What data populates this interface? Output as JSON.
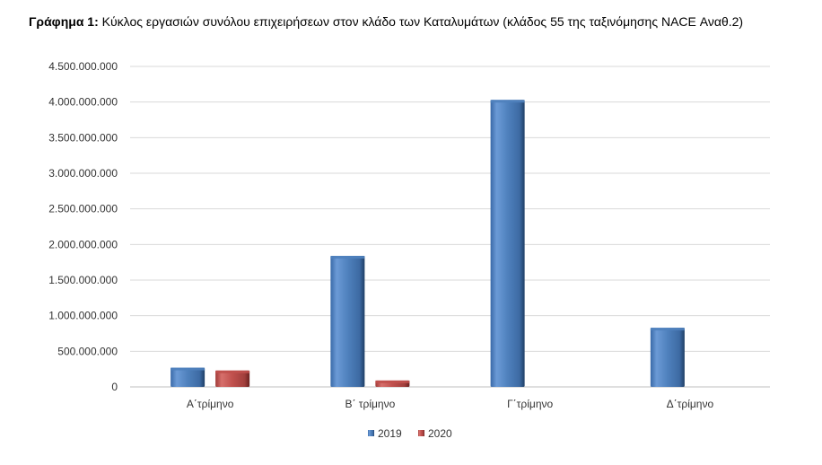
{
  "title_prefix": "Γράφημα 1:",
  "title_text": "Κύκλος εργασιών συνόλου επιχειρήσεων στον κλάδο των Καταλυμάτων (κλάδος 55 της ταξινόμησης NACE Αναθ.2)",
  "chart_data": {
    "type": "bar",
    "categories": [
      "Α΄τρίμηνο",
      "Β΄ τρίμηνο",
      "Γ΄τρίμηνο",
      "Δ΄τρίμηνο"
    ],
    "series": [
      {
        "name": "2019",
        "values": [
          270000000,
          1840000000,
          4030000000,
          830000000
        ],
        "color": "#4f81bd"
      },
      {
        "name": "2020",
        "values": [
          230000000,
          90000000,
          null,
          null
        ],
        "color": "#c0504d"
      }
    ],
    "yticks": [
      "0",
      "500.000.000",
      "1.000.000.000",
      "1.500.000.000",
      "2.000.000.000",
      "2.500.000.000",
      "3.000.000.000",
      "3.500.000.000",
      "4.000.000.000",
      "4.500.000.000"
    ],
    "ylim": [
      0,
      4500000000
    ],
    "grid": true,
    "legend": "bottom"
  }
}
